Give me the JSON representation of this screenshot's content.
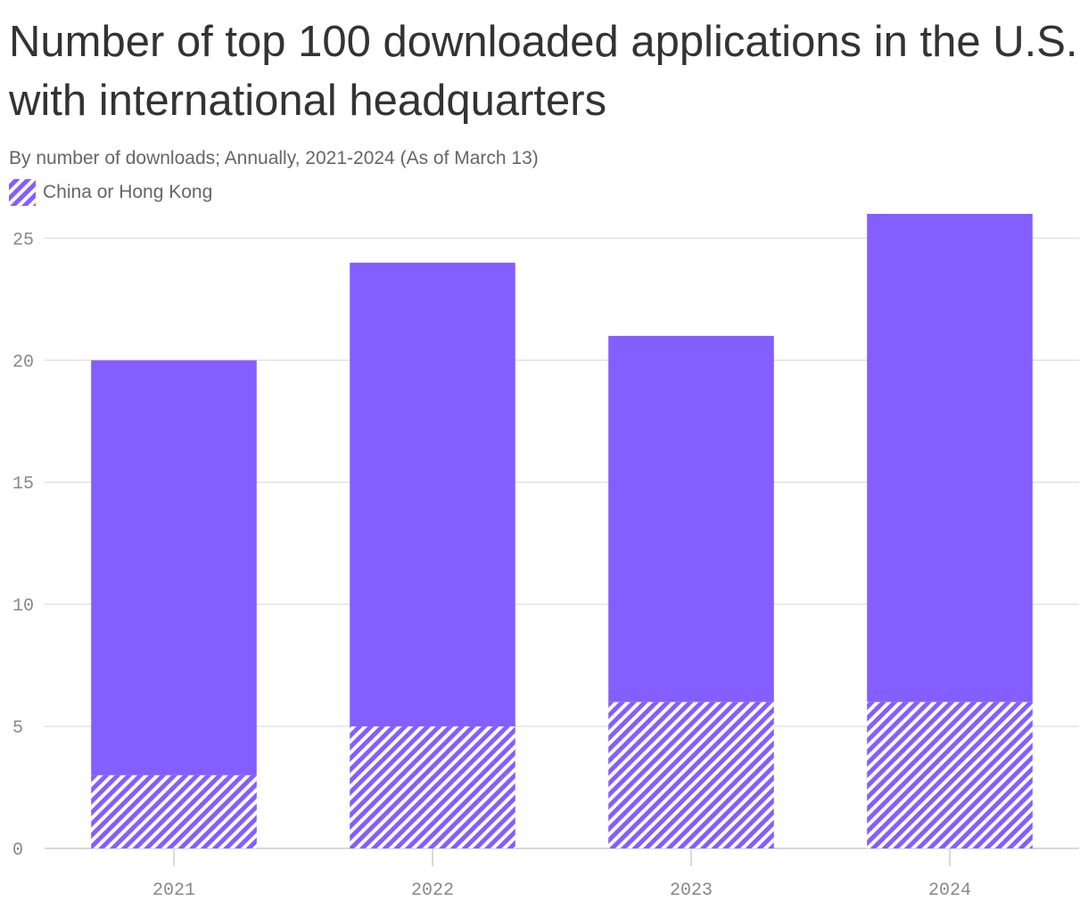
{
  "chart_data": {
    "type": "bar",
    "stacked": true,
    "title": "Number of top 100 downloaded applications in the U.S. with international headquarters",
    "subtitle": "By number of downloads; Annually, 2021-2024 (As of March 13)",
    "categories": [
      "2021",
      "2022",
      "2023",
      "2024"
    ],
    "series": [
      {
        "name": "China or Hong Kong",
        "values": [
          3,
          5,
          6,
          6
        ],
        "pattern": "hatched"
      },
      {
        "values": [
          17,
          19,
          15,
          20
        ]
      }
    ],
    "totals": [
      20,
      24,
      21,
      26
    ],
    "legend": {
      "label": "China or Hong Kong",
      "position": "top-left"
    },
    "yticks": [
      "0",
      "5",
      "10",
      "15",
      "20",
      "25"
    ],
    "ylim": [
      0,
      26
    ],
    "xlabel": "",
    "ylabel": "",
    "grid": true,
    "colors": {
      "bar": "#845EFF",
      "hatch": "#FFFFFF",
      "grid": "#E2E2E2",
      "text": "#333333",
      "muted": "#888888"
    }
  }
}
